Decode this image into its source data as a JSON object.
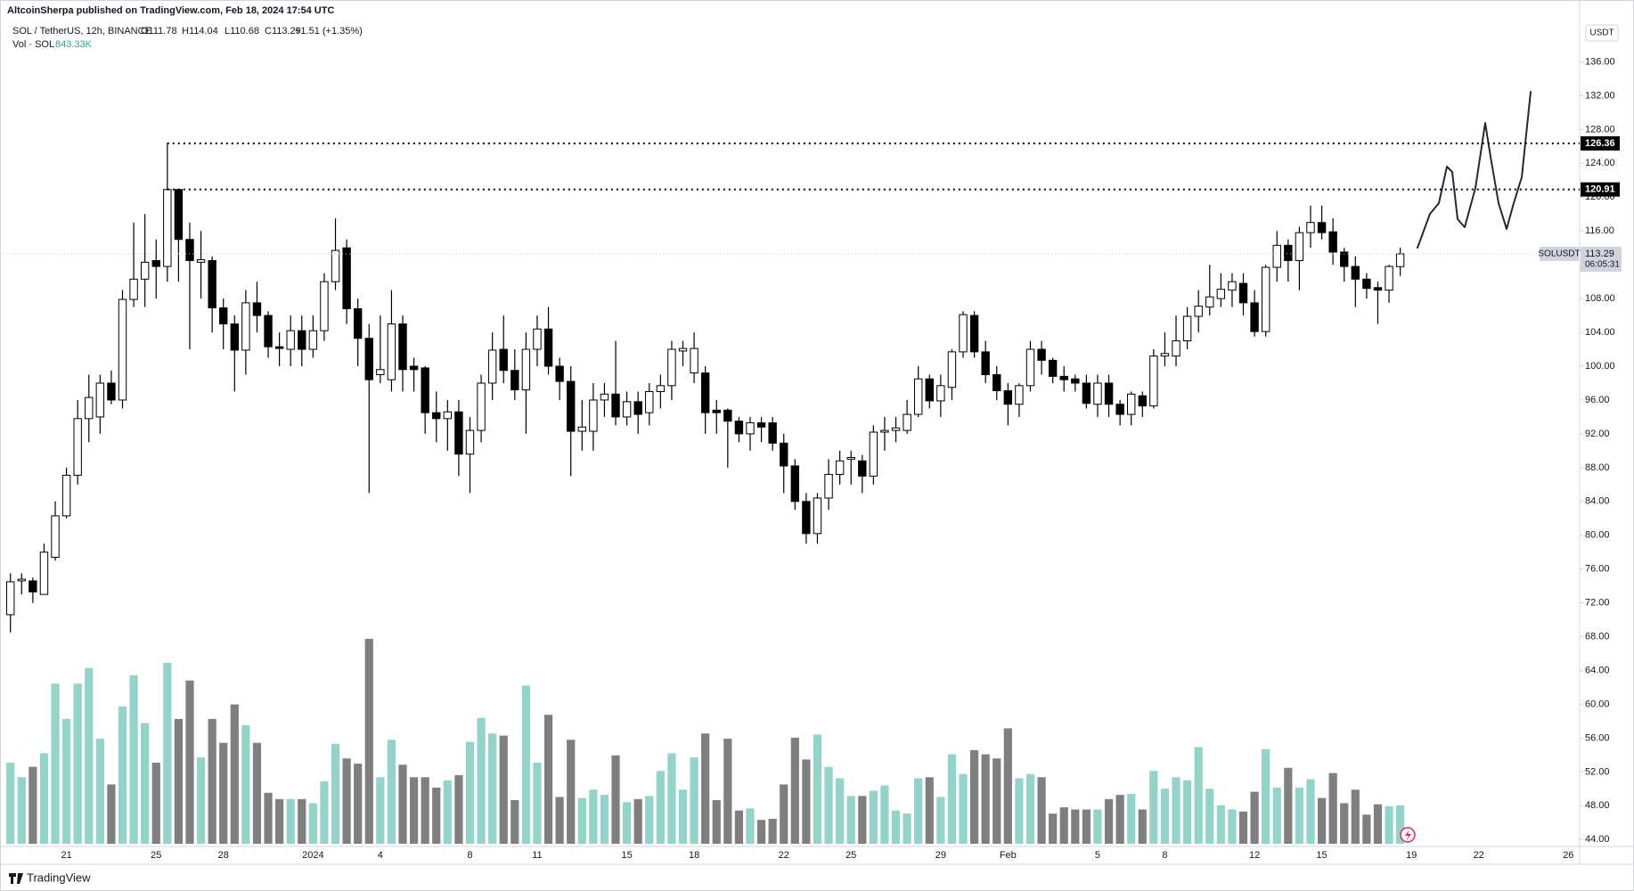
{
  "header": {
    "publisher": "AltcoinSherpa published on TradingView.com, Feb 18, 2024 17:54 UTC",
    "symbol": "SOL / TetherUS, 12h, BINANCE",
    "ohlc": [
      "O111.78",
      "H114.04",
      "L110.68",
      "C113.29",
      "+1.51 (+1.35%)"
    ],
    "volume_title": "Vol · SOL",
    "volume_value": "843.33K",
    "currency": "USDT",
    "brand": "TradingView"
  },
  "chart_data": {
    "type": "candlestick",
    "categories": [
      null,
      null,
      null,
      null,
      null,
      "21",
      null,
      null,
      null,
      null,
      null,
      null,
      null,
      "25",
      null,
      null,
      null,
      null,
      null,
      "28",
      null,
      null,
      null,
      null,
      null,
      null,
      null,
      "2024",
      null,
      null,
      null,
      null,
      null,
      "4",
      null,
      null,
      null,
      null,
      null,
      null,
      null,
      "8",
      null,
      null,
      null,
      null,
      null,
      "11",
      null,
      null,
      null,
      null,
      null,
      null,
      null,
      "15",
      null,
      null,
      null,
      null,
      null,
      "18",
      null,
      null,
      null,
      null,
      null,
      null,
      null,
      "22",
      null,
      null,
      null,
      null,
      null,
      "25",
      null,
      null,
      null,
      null,
      null,
      null,
      null,
      "29",
      null,
      null,
      null,
      null,
      null,
      "Feb",
      null,
      null,
      null,
      null,
      null,
      null,
      null,
      "5",
      null,
      null,
      null,
      null,
      null,
      "8",
      null,
      null,
      null,
      null,
      null,
      null,
      null,
      "12",
      null,
      null,
      null,
      null,
      null,
      "15",
      null,
      null,
      null,
      null,
      null,
      null,
      null,
      "19",
      null,
      null,
      null,
      null,
      null,
      "22",
      null,
      null,
      null,
      null,
      null,
      null,
      null,
      "26",
      null
    ],
    "open": [
      70.6,
      74.6,
      74.6,
      73,
      77.4,
      82.3,
      87.1,
      93.8,
      94,
      98,
      96,
      107.9,
      110.3,
      112.5,
      111.8,
      120.9,
      115,
      112.3,
      112.5,
      106.9,
      105,
      101.9,
      107.5,
      106,
      102.3,
      102,
      104.2,
      102,
      104.2,
      110,
      114,
      106.8,
      103.3,
      99,
      98.4,
      105,
      100,
      99.8,
      94.5,
      93.8,
      94.6,
      89.6,
      92.4,
      98,
      102,
      99.5,
      97.2,
      102,
      104.4,
      100,
      98.2,
      92.3,
      92.3,
      96,
      96.7,
      94,
      95.8,
      94.5,
      97,
      97.7,
      101.8,
      99.2,
      99.2,
      94.8,
      94.8,
      93.5,
      92,
      93.3,
      93.3,
      90.9,
      88.2,
      84,
      80.2,
      84.4,
      87.2,
      89,
      88.8,
      87,
      92.2,
      92.4,
      92.4,
      94.3,
      98.5,
      95.9,
      97.5,
      101.7,
      106,
      101.7,
      99,
      97.1,
      95.5,
      97.7,
      102,
      100.7,
      98.8,
      98.5,
      98,
      95.5,
      98,
      95.5,
      94.3,
      96.5,
      95.3,
      101.2,
      101.2,
      103,
      105.9,
      107,
      108,
      109,
      109.8,
      107.5,
      104.1,
      111.7,
      114.3,
      112.5,
      115.8,
      117,
      115.9,
      113.5,
      111.8,
      110.3,
      109.3,
      109,
      111.78,
      null,
      null,
      null,
      null,
      null,
      null,
      null,
      null,
      null,
      null,
      null,
      null,
      null,
      null,
      null,
      null
    ],
    "high": [
      75.5,
      75.5,
      75,
      79,
      84,
      88,
      96,
      99,
      99,
      99.5,
      109,
      117,
      118,
      115,
      126.4,
      121,
      117,
      116,
      113,
      108,
      106,
      109,
      110,
      106.5,
      104,
      106,
      106,
      106,
      111,
      117.5,
      115,
      108,
      105,
      106,
      109,
      106,
      101,
      100,
      97,
      96,
      96,
      94,
      99,
      104,
      106,
      102,
      104,
      106,
      107,
      101,
      100,
      96,
      98,
      98,
      103,
      97,
      97,
      98,
      99,
      103,
      103,
      104,
      100,
      96,
      95,
      94,
      94,
      94,
      94,
      92,
      89,
      85,
      85,
      89,
      90,
      90,
      89.5,
      93,
      94,
      94,
      96,
      100,
      99,
      99,
      102,
      106.5,
      106.5,
      103,
      100,
      98,
      98,
      103,
      103,
      101,
      100,
      99,
      99,
      99,
      99,
      96,
      97,
      97,
      102,
      104,
      106,
      107,
      109,
      112,
      111,
      111,
      111,
      109,
      112,
      116,
      115,
      116.5,
      119,
      119,
      117.5,
      114,
      113,
      111,
      110,
      112,
      114.04,
      null,
      null,
      null,
      null,
      null,
      null,
      null,
      null,
      null,
      null,
      null,
      null,
      null,
      null,
      null,
      null
    ],
    "low": [
      68.5,
      73,
      72,
      73,
      77,
      82,
      86,
      91,
      92,
      95.5,
      95,
      107,
      107,
      108,
      110,
      110,
      102,
      108,
      104,
      102,
      97,
      99,
      104,
      101,
      100,
      100,
      100,
      101,
      103,
      109,
      105,
      100,
      85,
      98,
      97,
      97,
      97,
      92,
      91,
      90,
      87,
      85,
      91,
      96,
      98,
      96,
      92,
      100,
      99,
      96,
      87,
      90,
      90,
      94,
      93,
      93,
      92,
      93,
      95,
      96,
      100,
      98,
      92,
      92,
      88,
      91,
      90,
      91,
      90,
      85,
      83,
      79,
      79,
      83,
      86,
      86,
      85,
      86,
      90,
      91,
      92,
      94,
      95,
      94,
      96,
      101,
      101,
      98,
      96,
      93,
      94,
      97,
      99,
      98,
      97,
      97,
      95,
      94,
      94,
      93,
      93,
      94,
      95,
      100,
      100,
      102,
      104,
      106,
      107,
      107,
      106,
      103.5,
      103.5,
      110,
      110,
      109,
      114,
      115,
      112,
      110,
      107,
      108,
      105,
      107.5,
      110.68,
      null,
      null,
      null,
      null,
      null,
      null,
      null,
      null,
      null,
      null,
      null,
      null,
      null,
      null,
      null,
      null
    ],
    "close": [
      74.5,
      74.8,
      73.3,
      78,
      82.3,
      87.1,
      93.8,
      96.3,
      98,
      96,
      107.9,
      110.3,
      112.3,
      111.8,
      120.9,
      115,
      112.5,
      112.6,
      106.9,
      105,
      101.9,
      107.5,
      106,
      102.3,
      102.1,
      104.2,
      102,
      104.2,
      110,
      113.7,
      106.8,
      103.3,
      98.4,
      99.6,
      105,
      99.6,
      99.6,
      94.5,
      93.8,
      94.6,
      89.6,
      92.4,
      98,
      101.9,
      99.5,
      97.2,
      102,
      104.4,
      100,
      98.2,
      92.3,
      92.8,
      96,
      96.7,
      94,
      95.8,
      94.3,
      97,
      97.7,
      102,
      102.1,
      102.1,
      94.5,
      94.5,
      93.5,
      92,
      93.3,
      92.8,
      90.9,
      88.2,
      84,
      80.2,
      84.4,
      87.2,
      88.8,
      89.2,
      87,
      92.2,
      92.4,
      92.7,
      94.3,
      98.5,
      95.9,
      97.7,
      101.7,
      106.1,
      101.7,
      99,
      97.1,
      95.5,
      97.7,
      102,
      100.7,
      98.8,
      98.4,
      98,
      95.6,
      98,
      95.5,
      94.3,
      96.7,
      95.3,
      101.2,
      101.5,
      103,
      105.9,
      107.1,
      108.2,
      109.1,
      110,
      107.5,
      104.1,
      111.7,
      114.3,
      112.5,
      115.8,
      117,
      115.8,
      113.5,
      111.8,
      110.3,
      109.2,
      109,
      111.8,
      113.29,
      null,
      null,
      null,
      null,
      null,
      null,
      null,
      null,
      null,
      null,
      null,
      null,
      null,
      null,
      null,
      null
    ],
    "volume": [
      1778000,
      1459000,
      1687000,
      1984000,
      3511000,
      2736000,
      3511000,
      3853000,
      2303000,
      1300000,
      3010000,
      3694000,
      2645000,
      1778000,
      3967000,
      2736000,
      3580000,
      1892000,
      2736000,
      2212000,
      3055000,
      2599000,
      2212000,
      1117000,
      980000,
      980000,
      980000,
      889000,
      1368000,
      2189000,
      1870000,
      1756000,
      4492000,
      1459000,
      2280000,
      1733000,
      1459000,
      1459000,
      1231000,
      1391000,
      1505000,
      2234000,
      2759000,
      2417000,
      2371000,
      958000,
      3466000,
      1778000,
      2827000,
      1026000,
      2280000,
      1003000,
      1186000,
      1072000,
      1938000,
      912000,
      980000,
      1049000,
      1596000,
      1984000,
      1186000,
      1892000,
      2417000,
      958000,
      2303000,
      730000,
      775000,
      524000,
      547000,
      1300000,
      2326000,
      1847000,
      2394000,
      1687000,
      1436000,
      1049000,
      1049000,
      1163000,
      1277000,
      730000,
      661000,
      1436000,
      1459000,
      1026000,
      1961000,
      1528000,
      2052000,
      1961000,
      1870000,
      2531000,
      1436000,
      1528000,
      1459000,
      661000,
      798000,
      752000,
      752000,
      752000,
      980000,
      1072000,
      1094000,
      752000,
      1596000,
      1208000,
      1459000,
      1391000,
      2120000,
      1208000,
      844000,
      752000,
      707000,
      1140000,
      2075000,
      1231000,
      1664000,
      1231000,
      1414000,
      1003000,
      1550000,
      889000,
      1186000,
      638000,
      866000,
      821000,
      843330,
      null,
      null,
      null,
      null,
      null,
      null,
      null,
      null,
      null,
      null,
      null,
      null,
      null,
      null,
      null,
      null
    ],
    "up_color": "#ffffff",
    "down_color": "#000000",
    "wick_color": "#000000",
    "volume_up_color": "#92d3ca",
    "volume_down_color": "#7f7f7f",
    "ylim": [
      43.5,
      140.9
    ],
    "yticks": [
      {
        "value": 44,
        "label": "44.00"
      },
      {
        "value": 48,
        "label": "48.00"
      },
      {
        "value": 52,
        "label": "52.00"
      },
      {
        "value": 56,
        "label": "56.00"
      },
      {
        "value": 60,
        "label": "60.00"
      },
      {
        "value": 64,
        "label": "64.00"
      },
      {
        "value": 68,
        "label": "68.00"
      },
      {
        "value": 72,
        "label": "72.00"
      },
      {
        "value": 76,
        "label": "76.00"
      },
      {
        "value": 80,
        "label": "80.00"
      },
      {
        "value": 84,
        "label": "84.00"
      },
      {
        "value": 88,
        "label": "88.00"
      },
      {
        "value": 92,
        "label": "92.00"
      },
      {
        "value": 96,
        "label": "96.00"
      },
      {
        "value": 100,
        "label": "100.00"
      },
      {
        "value": 104,
        "label": "104.00"
      },
      {
        "value": 108,
        "label": "108.00"
      },
      {
        "value": 112,
        "label": "112.00"
      },
      {
        "value": 116,
        "label": "116.00"
      },
      {
        "value": 120,
        "label": "120.00"
      },
      {
        "value": 124,
        "label": "124.00"
      },
      {
        "value": 128,
        "label": "128.00"
      },
      {
        "value": 132,
        "label": "132.00"
      },
      {
        "value": 136,
        "label": "136.00"
      }
    ],
    "levels": [
      126.36,
      120.91
    ],
    "last_price": {
      "label": "SOLUSDT",
      "value": 113.29,
      "countdown": "06:05:31"
    }
  }
}
